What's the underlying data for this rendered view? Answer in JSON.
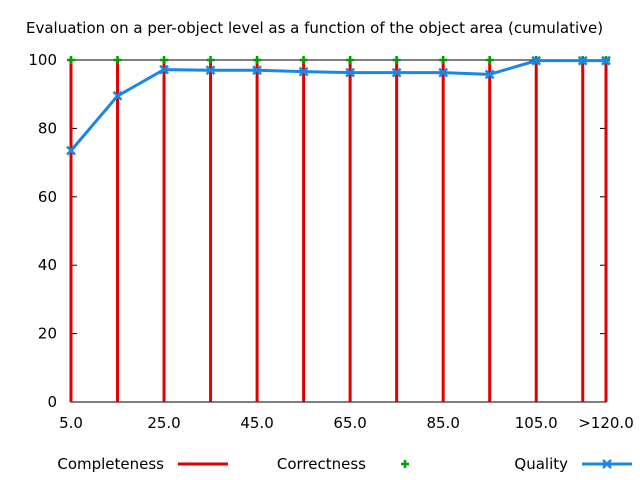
{
  "chart_data": {
    "type": "line",
    "title": "Evaluation on a per-object level as a function of the object area (cumulative)",
    "xlabel": "",
    "ylabel": "",
    "x_tick_labels": [
      "5.0",
      "25.0",
      "45.0",
      "65.0",
      "85.0",
      "105.0",
      ">120.0"
    ],
    "y_tick_labels": [
      "0",
      "20",
      "40",
      "60",
      "80",
      "100"
    ],
    "ylim": [
      0,
      100
    ],
    "x": [
      5,
      15,
      25,
      35,
      45,
      55,
      65,
      75,
      85,
      95,
      105,
      115,
      120
    ],
    "grid": false,
    "legend_position": "bottom",
    "series": [
      {
        "name": "Completeness",
        "style": "impulses",
        "color": "#e00000",
        "values": [
          100,
          100,
          100,
          100,
          100,
          100,
          100,
          100,
          100,
          100,
          100,
          100,
          100
        ]
      },
      {
        "name": "Correctness",
        "style": "points",
        "color": "#009e00",
        "values": [
          100,
          100,
          100,
          100,
          100,
          100,
          100,
          100,
          100,
          100,
          100,
          100,
          100
        ]
      },
      {
        "name": "Quality",
        "style": "linespoints",
        "color": "#1a86e6",
        "values": [
          73.5,
          89.5,
          97.2,
          97.0,
          97.0,
          96.6,
          96.3,
          96.3,
          96.3,
          95.8,
          99.8,
          99.8,
          99.8
        ]
      }
    ]
  }
}
